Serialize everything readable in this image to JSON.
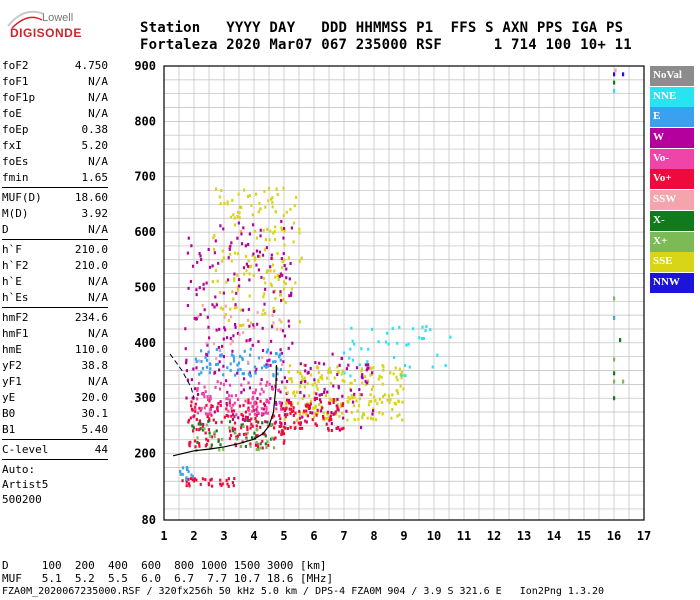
{
  "logo": {
    "line1": "Lowell",
    "line2": "DIGISONDE"
  },
  "header": {
    "row1": "Station   YYYY DAY   DDD HHMMSS P1  FFS S AXN PPS IGA PS",
    "row2": "Fortaleza 2020 Mar07 067 235000 RSF      1 714 100 10+ 11"
  },
  "params": {
    "group1": [
      {
        "k": "foF2",
        "v": "4.750"
      },
      {
        "k": "foF1",
        "v": "N/A"
      },
      {
        "k": "foF1p",
        "v": "N/A"
      },
      {
        "k": "foE",
        "v": "N/A"
      },
      {
        "k": "foEp",
        "v": "0.38"
      },
      {
        "k": "fxI",
        "v": "5.20"
      },
      {
        "k": "foEs",
        "v": "N/A"
      },
      {
        "k": "fmin",
        "v": "1.65"
      }
    ],
    "group2": [
      {
        "k": "MUF(D)",
        "v": "18.60"
      },
      {
        "k": "M(D)",
        "v": "3.92"
      },
      {
        "k": "D",
        "v": "N/A"
      }
    ],
    "group3": [
      {
        "k": "h`F",
        "v": "210.0"
      },
      {
        "k": "h`F2",
        "v": "210.0"
      },
      {
        "k": "h`E",
        "v": "N/A"
      },
      {
        "k": "h`Es",
        "v": "N/A"
      }
    ],
    "group4": [
      {
        "k": "hmF2",
        "v": "234.6"
      },
      {
        "k": "hmF1",
        "v": "N/A"
      },
      {
        "k": "hmE",
        "v": "110.0"
      },
      {
        "k": "yF2",
        "v": "38.8"
      },
      {
        "k": "yF1",
        "v": "N/A"
      },
      {
        "k": "yE",
        "v": "20.0"
      },
      {
        "k": "B0",
        "v": "30.1"
      },
      {
        "k": "B1",
        "v": "5.40"
      }
    ],
    "group5": [
      {
        "k": "C-level",
        "v": "44"
      }
    ],
    "auto_lines": [
      "Auto:",
      "Artist5",
      "500200"
    ]
  },
  "footer": {
    "d_row": "D     100  200  400  600  800 1000 1500 3000 [km]",
    "muf_row": "MUF   5.1  5.2  5.5  6.0  6.7  7.7 10.7 18.6 [MHz]",
    "info": "FZA0M_2020067235000.RSF / 320fx256h 50 kHz 5.0 km / DPS-4 FZA0M 904 / 3.9 S 321.6 E   Ion2Png 1.3.20"
  },
  "legend": [
    {
      "label": "NoVal",
      "color": "#8c8c8c"
    },
    {
      "label": "NNE",
      "color": "#29e4f0"
    },
    {
      "label": "E",
      "color": "#3aa0f0"
    },
    {
      "label": "W",
      "color": "#b4009c"
    },
    {
      "label": "Vo-",
      "color": "#f044a8"
    },
    {
      "label": "Vo+",
      "color": "#ee0a3c"
    },
    {
      "label": "SSW",
      "color": "#f4a4ac"
    },
    {
      "label": "X-",
      "color": "#117a1c"
    },
    {
      "label": "X+",
      "color": "#7cba58"
    },
    {
      "label": "SSE",
      "color": "#d8d418"
    },
    {
      "label": "NNW",
      "color": "#1c14d8"
    }
  ],
  "chart_data": {
    "type": "scatter",
    "xlabel": "",
    "ylabel": "",
    "xlim": [
      1,
      17
    ],
    "ylim": [
      80,
      900
    ],
    "x_ticks": [
      1,
      2,
      3,
      4,
      5,
      6,
      7,
      8,
      9,
      10,
      11,
      12,
      13,
      14,
      15,
      16,
      17
    ],
    "y_ticks": [
      80,
      200,
      300,
      400,
      500,
      600,
      700,
      800,
      900
    ],
    "grid": true,
    "regions": [
      {
        "series": "SSE",
        "x": [
          2.6,
          5.6
        ],
        "y": [
          430,
          680
        ],
        "n": 160
      },
      {
        "series": "W",
        "x": [
          1.7,
          5.3
        ],
        "y": [
          250,
          620
        ],
        "n": 220
      },
      {
        "series": "Vo+",
        "x": [
          1.8,
          5.2
        ],
        "y": [
          210,
          300
        ],
        "n": 160
      },
      {
        "series": "E",
        "x": [
          2.0,
          5.0
        ],
        "y": [
          340,
          390
        ],
        "n": 70
      },
      {
        "series": "Vo-",
        "x": [
          2.0,
          4.9
        ],
        "y": [
          270,
          330
        ],
        "n": 90
      },
      {
        "series": "SSE",
        "x": [
          5.0,
          9.0
        ],
        "y": [
          260,
          360
        ],
        "n": 200
      },
      {
        "series": "W",
        "x": [
          5.5,
          8.0
        ],
        "y": [
          240,
          380
        ],
        "n": 70
      },
      {
        "series": "Vo+",
        "x": [
          5.0,
          7.0
        ],
        "y": [
          240,
          300
        ],
        "n": 70
      },
      {
        "series": "NNE",
        "x": [
          7.0,
          10.6
        ],
        "y": [
          340,
          430
        ],
        "n": 40
      },
      {
        "series": "X-",
        "x": [
          1.9,
          4.7
        ],
        "y": [
          210,
          260
        ],
        "n": 30
      },
      {
        "series": "X+",
        "x": [
          1.9,
          4.7
        ],
        "y": [
          205,
          255
        ],
        "n": 30
      },
      {
        "series": "SSW",
        "x": [
          1.9,
          5.0
        ],
        "y": [
          360,
          470
        ],
        "n": 25
      },
      {
        "series": "Vo+",
        "x": [
          1.6,
          3.4
        ],
        "y": [
          140,
          155
        ],
        "n": 30
      },
      {
        "series": "E",
        "x": [
          1.5,
          2.0
        ],
        "y": [
          150,
          175
        ],
        "n": 12
      }
    ],
    "spots": [
      {
        "series": "X-",
        "x": 16.0,
        "y": 870
      },
      {
        "series": "NNE",
        "x": 16.0,
        "y": 855
      },
      {
        "series": "NNW",
        "x": 16.0,
        "y": 885
      },
      {
        "series": "NNW",
        "x": 16.3,
        "y": 885
      },
      {
        "series": "SSW",
        "x": 16.05,
        "y": 892
      },
      {
        "series": "X+",
        "x": 16.0,
        "y": 480
      },
      {
        "series": "E",
        "x": 16.0,
        "y": 445
      },
      {
        "series": "X-",
        "x": 16.2,
        "y": 405
      },
      {
        "series": "X+",
        "x": 16.0,
        "y": 370
      },
      {
        "series": "X-",
        "x": 16.0,
        "y": 345
      },
      {
        "series": "X+",
        "x": 16.0,
        "y": 330
      },
      {
        "series": "X+",
        "x": 16.3,
        "y": 330
      },
      {
        "series": "X-",
        "x": 16.0,
        "y": 300
      }
    ],
    "profile": {
      "x": [
        1.3,
        2.0,
        2.5,
        3.0,
        3.5,
        4.0,
        4.3,
        4.5,
        4.65,
        4.73,
        4.75
      ],
      "y": [
        196,
        205,
        208,
        212,
        218,
        226,
        236,
        250,
        275,
        320,
        360
      ]
    },
    "profile_ext": {
      "x": [
        1.2,
        1.6,
        1.9,
        2.0
      ],
      "y": [
        380,
        350,
        320,
        300
      ]
    }
  }
}
